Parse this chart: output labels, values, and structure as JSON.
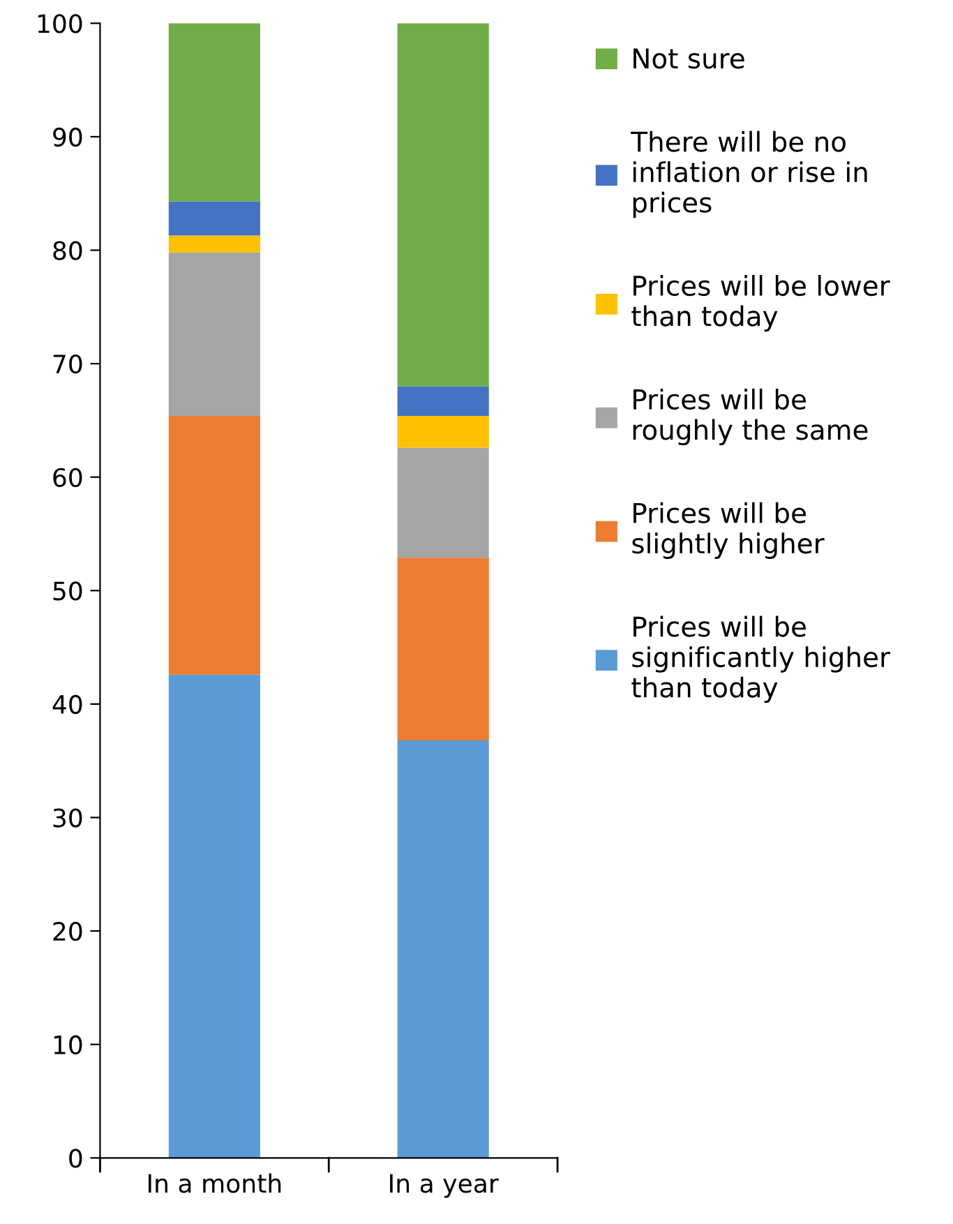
{
  "chart_data": {
    "type": "bar",
    "stacked": true,
    "categories": [
      "In a month",
      "In a year"
    ],
    "series": [
      {
        "name": "Prices will be significantly higher than today",
        "color": "#5b9bd5",
        "values": [
          42.6,
          36.8
        ]
      },
      {
        "name": "Prices will be slightly higher",
        "color": "#ed7d31",
        "values": [
          22.8,
          16.1
        ]
      },
      {
        "name": "Prices will be roughly the same",
        "color": "#a5a5a5",
        "values": [
          14.4,
          9.7
        ]
      },
      {
        "name": "Prices will be lower than today",
        "color": "#ffc000",
        "values": [
          1.5,
          2.8
        ]
      },
      {
        "name": "There will be no inflation or rise in prices",
        "color": "#4472c4",
        "values": [
          3.0,
          2.6
        ]
      },
      {
        "name": "Not sure",
        "color": "#70ad47",
        "values": [
          15.7,
          32.0
        ]
      }
    ],
    "ylim": [
      0,
      100
    ],
    "yticks": [
      0,
      10,
      20,
      30,
      40,
      50,
      60,
      70,
      80,
      90,
      100
    ],
    "grid": false,
    "legend": "right"
  }
}
